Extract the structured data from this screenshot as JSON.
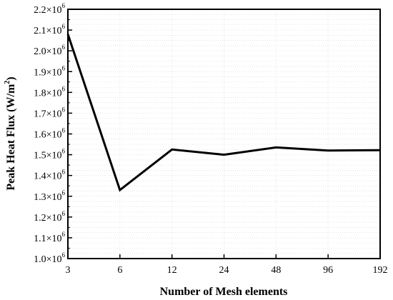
{
  "chart_data": {
    "type": "line",
    "title": "",
    "xlabel": "Number of Mesh elements",
    "ylabel": "Peak Heat Flux (W/m²)",
    "ylabel_parts": {
      "text": "Peak Heat Flux (W/m",
      "sup": "2",
      "close": ")"
    },
    "x": [
      "3",
      "6",
      "12",
      "24",
      "48",
      "96",
      "192"
    ],
    "x_scale": "categorical (log2 spacing)",
    "series": [
      {
        "values": [
          2080000,
          1330000,
          1525000,
          1500000,
          1535000,
          1520000,
          1522000
        ]
      }
    ],
    "ylim": [
      1000000,
      2200000
    ],
    "y_ticks": [
      {
        "mantissa": "1.0",
        "exp": "6"
      },
      {
        "mantissa": "1.1",
        "exp": "6"
      },
      {
        "mantissa": "1.2",
        "exp": "6"
      },
      {
        "mantissa": "1.3",
        "exp": "6"
      },
      {
        "mantissa": "1.4",
        "exp": "6"
      },
      {
        "mantissa": "1.5",
        "exp": "6"
      },
      {
        "mantissa": "1.6",
        "exp": "6"
      },
      {
        "mantissa": "1.7",
        "exp": "6"
      },
      {
        "mantissa": "1.8",
        "exp": "6"
      },
      {
        "mantissa": "1.9",
        "exp": "6"
      },
      {
        "mantissa": "2.0",
        "exp": "6"
      },
      {
        "mantissa": "2.1",
        "exp": "6"
      },
      {
        "mantissa": "2.2",
        "exp": "6"
      }
    ],
    "grid": true,
    "line_color": "#000000",
    "grid_color": "#d9d9d9"
  }
}
